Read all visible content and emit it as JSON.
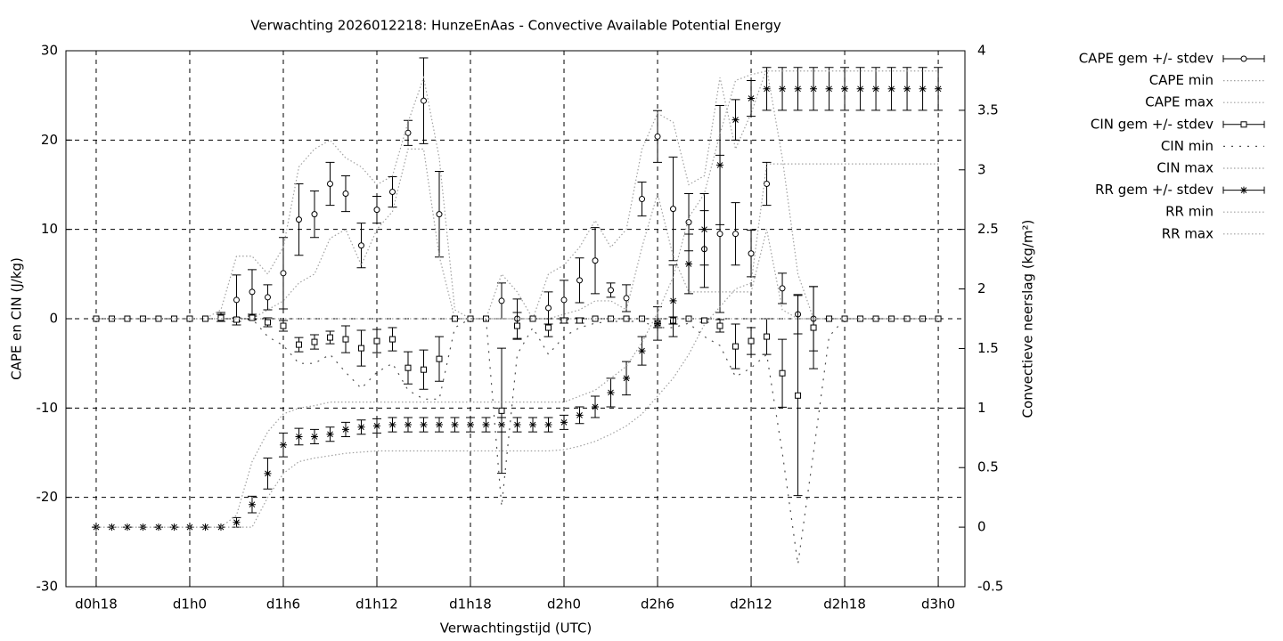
{
  "chart_data": {
    "type": "errorbar-line",
    "title": "Verwachting 2026012218: HunzeEnAas - Convective Available Potential Energy",
    "xlabel": "Verwachtingstijd (UTC)",
    "ylabel": "CAPE en CIN (J/kg)",
    "y2label": "Convectieve neerslag (kg/m²)",
    "x": [
      18,
      19,
      20,
      21,
      22,
      23,
      24,
      25,
      26,
      27,
      28,
      29,
      30,
      31,
      32,
      33,
      34,
      35,
      36,
      37,
      38,
      39,
      40,
      41,
      42,
      43,
      44,
      45,
      46,
      47,
      48,
      49,
      50,
      51,
      52,
      53,
      54,
      55,
      56,
      57,
      58,
      59,
      60,
      61,
      62,
      63,
      64,
      65,
      66,
      67,
      68,
      69,
      70,
      71,
      72
    ],
    "xlim": [
      16.06,
      73.71
    ],
    "xticks": [
      {
        "value": 18,
        "label": "d0h18"
      },
      {
        "value": 24,
        "label": "d1h0"
      },
      {
        "value": 30,
        "label": "d1h6"
      },
      {
        "value": 36,
        "label": "d1h12"
      },
      {
        "value": 42,
        "label": "d1h18"
      },
      {
        "value": 48,
        "label": "d2h0"
      },
      {
        "value": 54,
        "label": "d2h6"
      },
      {
        "value": 60,
        "label": "d2h12"
      },
      {
        "value": 66,
        "label": "d2h18"
      },
      {
        "value": 72,
        "label": "d3h0"
      }
    ],
    "ylim": [
      -30,
      30
    ],
    "yticks": [
      -30,
      -20,
      -10,
      0,
      10,
      20,
      30
    ],
    "y2lim": [
      -0.5,
      4
    ],
    "y2ticks": [
      -0.5,
      0,
      0.5,
      1,
      1.5,
      2,
      2.5,
      3,
      3.5,
      4
    ],
    "grid": true,
    "legend": "outside-right",
    "series": [
      {
        "name": "CAPE gem +/- stdev",
        "style": "errorbars",
        "marker": "circle",
        "color": "#000000",
        "values": [
          0,
          0,
          0,
          0,
          0,
          0,
          0,
          0,
          0.2,
          2.1,
          3.0,
          2.4,
          5.1,
          11.1,
          11.7,
          15.1,
          14.0,
          8.2,
          12.2,
          14.2,
          20.8,
          24.4,
          11.7,
          0,
          0,
          0,
          2.0,
          0,
          0,
          1.2,
          2.1,
          4.3,
          6.5,
          3.2,
          2.3,
          13.4,
          20.4,
          12.3,
          10.8,
          7.8,
          9.5,
          9.5,
          7.3,
          15.1,
          3.4,
          0.5,
          0,
          0,
          0,
          0,
          0,
          0,
          0,
          0,
          0
        ],
        "errors": [
          0,
          0,
          0,
          0,
          0,
          0,
          0,
          0,
          0.5,
          2.8,
          2.5,
          1.4,
          4.0,
          4.0,
          2.6,
          2.4,
          2.0,
          2.5,
          1.5,
          1.7,
          1.4,
          4.8,
          4.8,
          0,
          0,
          0,
          2.0,
          2.2,
          0,
          1.8,
          2.2,
          2.5,
          3.7,
          0.8,
          1.5,
          1.9,
          2.9,
          5.8,
          3.2,
          4.3,
          8.8,
          3.5,
          2.6,
          2.4,
          1.7,
          2.2,
          3.6,
          0,
          0,
          0,
          0,
          0,
          0,
          0,
          0
        ]
      },
      {
        "name": "CAPE min",
        "style": "dotted",
        "color": "#a0a0a0",
        "values": [
          0,
          0,
          0,
          0,
          0,
          0,
          0,
          0,
          0,
          0,
          0,
          1,
          2,
          4,
          5,
          9,
          10,
          6,
          10,
          12,
          19,
          19,
          7,
          0,
          0,
          0,
          0,
          0,
          0,
          0,
          0.5,
          1,
          2,
          2,
          1,
          8,
          14,
          7,
          3,
          3,
          3,
          3,
          3,
          10,
          1,
          0,
          0,
          0,
          0,
          0,
          0,
          0,
          0,
          0,
          0
        ]
      },
      {
        "name": "CAPE max",
        "style": "dotted",
        "color": "#a0a0a0",
        "values": [
          0,
          0,
          0,
          0,
          0,
          0,
          0,
          0,
          1,
          7,
          7,
          5,
          8,
          17,
          19,
          20,
          18,
          17,
          15,
          16,
          22,
          27,
          18,
          1,
          0,
          0,
          5,
          3,
          0,
          5,
          6,
          8,
          11,
          8,
          10,
          19,
          23,
          22,
          15,
          16,
          27,
          19,
          23,
          28,
          18,
          5,
          0,
          0,
          0,
          0,
          0,
          0,
          0,
          0,
          0
        ]
      },
      {
        "name": "CIN gem +/- stdev",
        "style": "errorbars",
        "marker": "square",
        "color": "#000000",
        "values": [
          0,
          0,
          0,
          0,
          0,
          0,
          0,
          0,
          0.1,
          -0.1,
          0.1,
          -0.4,
          -0.8,
          -2.9,
          -2.6,
          -2.1,
          -2.3,
          -3.3,
          -2.5,
          -2.3,
          -5.5,
          -5.7,
          -4.5,
          0,
          0,
          0,
          -10.3,
          -0.8,
          0,
          -1.0,
          -0.2,
          -0.2,
          0,
          0,
          0,
          0,
          -0.5,
          -0.2,
          0,
          -0.2,
          -0.8,
          -3.1,
          -2.5,
          -2.0,
          -6.1,
          -8.6,
          -1.0,
          0,
          0,
          0,
          0,
          0,
          0,
          0,
          0
        ],
        "errors": [
          0,
          0,
          0,
          0,
          0,
          0,
          0,
          0,
          0.4,
          0.2,
          0.2,
          0.5,
          0.6,
          0.8,
          0.8,
          0.7,
          1.5,
          2.0,
          1.3,
          1.3,
          1.8,
          2.2,
          2.5,
          0,
          0,
          0,
          7.0,
          1.5,
          0,
          1.0,
          0.3,
          0.3,
          0,
          0,
          0,
          0,
          0.5,
          0.4,
          0,
          0.2,
          0.7,
          2.5,
          1.5,
          2.0,
          3.8,
          11.2,
          4.6,
          0,
          0,
          0,
          0,
          0,
          0,
          0,
          0
        ]
      },
      {
        "name": "CIN min",
        "style": "sparse",
        "color": "#505050",
        "values": [
          0,
          0,
          0,
          0,
          0,
          0,
          0,
          0,
          0,
          0,
          0,
          -2,
          -3,
          -5,
          -5,
          -4,
          -6,
          -7.8,
          -6,
          -5,
          -8,
          -9,
          -9,
          -1,
          0,
          0,
          -21,
          -4,
          -1,
          -4,
          -2,
          -1,
          -0.5,
          -0.3,
          -0.3,
          -0.3,
          -1,
          -1,
          -0.5,
          -2,
          -3,
          -6.5,
          -5.5,
          -4,
          -15,
          -27.5,
          -15,
          -2,
          0,
          0,
          0,
          0,
          0,
          0,
          0
        ]
      },
      {
        "name": "CIN max",
        "style": "dotted",
        "color": "#a0a0a0",
        "values": [
          0,
          0,
          0,
          0,
          0,
          0,
          0,
          0,
          0,
          0,
          0,
          0,
          0,
          0,
          0,
          0,
          0,
          0,
          0,
          0,
          0,
          0,
          0,
          0,
          0,
          0,
          0,
          0,
          0,
          0,
          0,
          0,
          0,
          0,
          0,
          0,
          0,
          0,
          0,
          0,
          0,
          0,
          0,
          0,
          0,
          0,
          0,
          0,
          0,
          0,
          0,
          0,
          0,
          0,
          0
        ]
      },
      {
        "name": "RR gem +/- stdev",
        "style": "errorbars",
        "marker": "star",
        "color": "#000000",
        "axis": "y2",
        "values": [
          0,
          0,
          0,
          0,
          0,
          0,
          0,
          0,
          0,
          0.04,
          0.19,
          0.45,
          0.69,
          0.76,
          0.76,
          0.78,
          0.82,
          0.84,
          0.85,
          0.86,
          0.86,
          0.86,
          0.86,
          0.86,
          0.86,
          0.86,
          0.86,
          0.86,
          0.86,
          0.86,
          0.88,
          0.94,
          1.01,
          1.13,
          1.25,
          1.48,
          1.71,
          1.9,
          2.21,
          2.5,
          3.04,
          3.42,
          3.6,
          3.68,
          3.68,
          3.68,
          3.68,
          3.68,
          3.68,
          3.68,
          3.68,
          3.68,
          3.68,
          3.68,
          3.68
        ],
        "errors": [
          0,
          0,
          0,
          0,
          0,
          0,
          0,
          0,
          0,
          0.04,
          0.07,
          0.13,
          0.1,
          0.07,
          0.06,
          0.06,
          0.06,
          0.06,
          0.06,
          0.06,
          0.06,
          0.06,
          0.06,
          0.06,
          0.06,
          0.06,
          0.06,
          0.06,
          0.06,
          0.06,
          0.06,
          0.07,
          0.09,
          0.12,
          0.14,
          0.12,
          0.14,
          0.3,
          0.25,
          0.3,
          0.5,
          0.17,
          0.15,
          0.18,
          0.18,
          0.18,
          0.18,
          0.18,
          0.18,
          0.18,
          0.18,
          0.18,
          0.18,
          0.18,
          0.18
        ]
      },
      {
        "name": "RR min",
        "style": "dotted",
        "color": "#a0a0a0",
        "axis": "y2",
        "values": [
          0,
          0,
          0,
          0,
          0,
          0,
          0,
          0,
          0,
          0,
          0,
          0.25,
          0.45,
          0.55,
          0.58,
          0.6,
          0.62,
          0.63,
          0.64,
          0.64,
          0.64,
          0.64,
          0.64,
          0.64,
          0.64,
          0.64,
          0.64,
          0.64,
          0.64,
          0.64,
          0.65,
          0.68,
          0.72,
          0.78,
          0.85,
          0.95,
          1.1,
          1.25,
          1.45,
          1.7,
          1.85,
          2.0,
          2.05,
          3.05,
          3.05,
          3.05,
          3.05,
          3.05,
          3.05,
          3.05,
          3.05,
          3.05,
          3.05,
          3.05,
          3.05
        ]
      },
      {
        "name": "RR max",
        "style": "dotted",
        "color": "#a0a0a0",
        "axis": "y2",
        "values": [
          0,
          0,
          0,
          0,
          0,
          0,
          0,
          0,
          0,
          0.1,
          0.55,
          0.8,
          0.95,
          1.0,
          1.02,
          1.05,
          1.05,
          1.05,
          1.05,
          1.05,
          1.05,
          1.05,
          1.05,
          1.05,
          1.05,
          1.05,
          1.05,
          1.05,
          1.05,
          1.05,
          1.05,
          1.1,
          1.15,
          1.25,
          1.35,
          1.55,
          1.8,
          2.1,
          2.6,
          2.8,
          3.3,
          3.75,
          3.8,
          3.83,
          3.83,
          3.83,
          3.83,
          3.83,
          3.83,
          3.83,
          3.83,
          3.83,
          3.83,
          3.83,
          3.83
        ]
      }
    ]
  }
}
